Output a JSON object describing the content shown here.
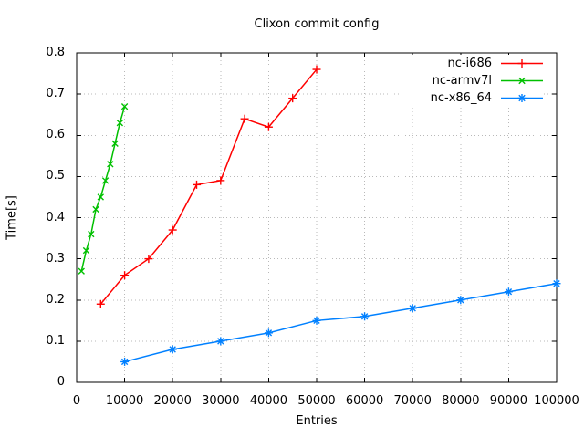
{
  "chart_data": {
    "type": "line",
    "title": "Clixon commit config",
    "xlabel": "Entries",
    "ylabel": "Time[s]",
    "xlim": [
      0,
      100000
    ],
    "ylim": [
      0,
      0.8
    ],
    "xticks": [
      0,
      10000,
      20000,
      30000,
      40000,
      50000,
      60000,
      70000,
      80000,
      90000,
      100000
    ],
    "yticks": [
      0,
      0.1,
      0.2,
      0.3,
      0.4,
      0.5,
      0.6,
      0.7,
      0.8
    ],
    "grid": true,
    "grid_color": "#b9b9b9",
    "border_color": "#000000",
    "legend_position": "top-right-inside",
    "series": [
      {
        "name": "nc-i686",
        "color": "#ff0000",
        "marker": "plus",
        "x": [
          5000,
          10000,
          15000,
          20000,
          25000,
          30000,
          35000,
          40000,
          45000,
          50000
        ],
        "y": [
          0.19,
          0.26,
          0.3,
          0.37,
          0.48,
          0.49,
          0.64,
          0.62,
          0.69,
          0.76
        ]
      },
      {
        "name": "nc-armv7l",
        "color": "#00c000",
        "marker": "cross",
        "x": [
          1000,
          2000,
          3000,
          4000,
          5000,
          6000,
          7000,
          8000,
          9000,
          10000
        ],
        "y": [
          0.27,
          0.32,
          0.36,
          0.42,
          0.45,
          0.49,
          0.53,
          0.58,
          0.63,
          0.67
        ]
      },
      {
        "name": "nc-x86_64",
        "color": "#0080ff",
        "marker": "asterisk",
        "x": [
          10000,
          20000,
          30000,
          40000,
          50000,
          60000,
          70000,
          80000,
          90000,
          100000
        ],
        "y": [
          0.05,
          0.08,
          0.1,
          0.12,
          0.15,
          0.16,
          0.18,
          0.2,
          0.22,
          0.24
        ]
      }
    ]
  }
}
